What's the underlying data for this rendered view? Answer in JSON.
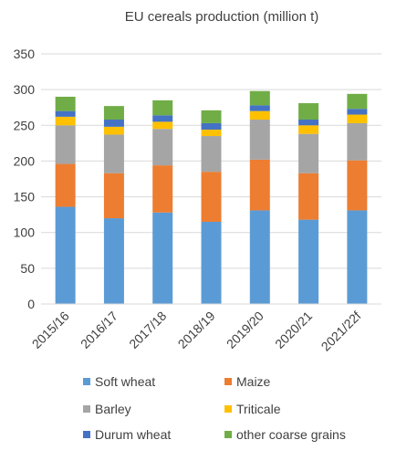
{
  "chart_data": {
    "type": "bar",
    "stacked": true,
    "title": "EU cereals production (million t)",
    "xlabel": "",
    "ylabel": "",
    "ylim": [
      0,
      350
    ],
    "yticks": [
      0,
      50,
      100,
      150,
      200,
      250,
      300,
      350
    ],
    "grid": true,
    "legend_position": "bottom",
    "categories": [
      "2015/16",
      "2016/17",
      "2017/18",
      "2018/19",
      "2019/20",
      "2020/21",
      "2021/22f"
    ],
    "series": [
      {
        "name": "Soft wheat",
        "color": "#5b9bd5",
        "values": [
          136,
          120,
          128,
          115,
          131,
          118,
          131
        ]
      },
      {
        "name": "Maize",
        "color": "#ed7d31",
        "values": [
          60,
          63,
          66,
          70,
          71,
          65,
          70
        ]
      },
      {
        "name": "Barley",
        "color": "#a5a5a5",
        "values": [
          54,
          54,
          51,
          50,
          56,
          55,
          52
        ]
      },
      {
        "name": "Triticale",
        "color": "#ffc000",
        "values": [
          12,
          11,
          10,
          9,
          12,
          12,
          12
        ]
      },
      {
        "name": "Durum wheat",
        "color": "#4472c4",
        "values": [
          8,
          10,
          9,
          9,
          8,
          8,
          8
        ]
      },
      {
        "name": "other coarse grains",
        "color": "#70ad47",
        "values": [
          20,
          19,
          21,
          18,
          20,
          23,
          21
        ]
      }
    ]
  }
}
